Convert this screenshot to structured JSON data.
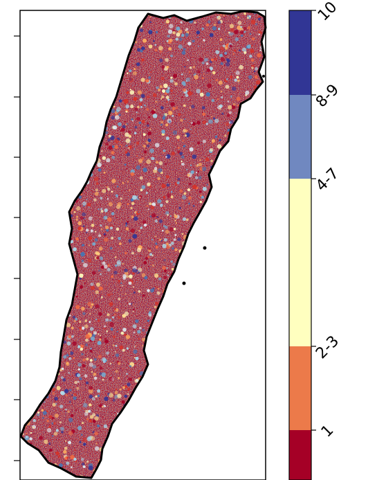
{
  "map": {
    "frame_color": "#000000",
    "region_outline_color": "#000000",
    "y_axis_ticks": 8
  },
  "legend": {
    "classes": [
      {
        "label": "10",
        "color": "#313695"
      },
      {
        "label": "8-9",
        "color": "#7088c0"
      },
      {
        "label": "4-7",
        "color": "#ffffbf"
      },
      {
        "label": "2-3",
        "color": "#ec7a4a"
      },
      {
        "label": "1",
        "color": "#a50026"
      }
    ]
  },
  "raster_palette": [
    "#a50026",
    "#d73027",
    "#f46d43",
    "#fdae61",
    "#fee090",
    "#ffffbf",
    "#e0f3f8",
    "#abd9e9",
    "#74add1",
    "#4575b4",
    "#313695"
  ]
}
